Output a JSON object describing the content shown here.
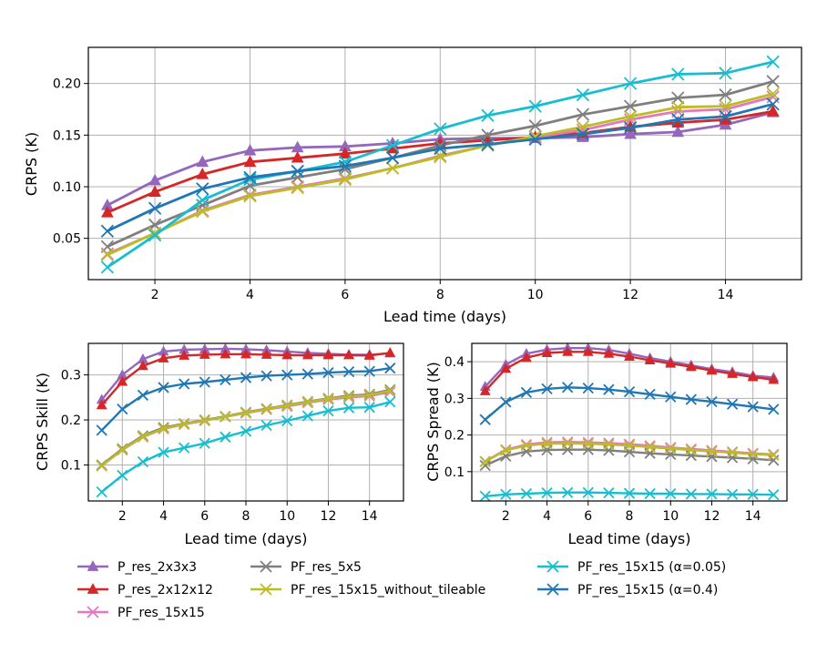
{
  "colors": {
    "P_res_2x3x3": "#9467bd",
    "P_res_2x12x12": "#d62728",
    "PF_res_15x15": "#e377c2",
    "PF_res_5x5": "#7f7f7f",
    "PF_res_15x15_without_tileable": "#bcbd22",
    "PF_res_15x15_a005": "#17becf",
    "PF_res_15x15_a04": "#1f77b4"
  },
  "chart_data": [
    {
      "type": "line",
      "title": "",
      "xlabel": "Lead time (days)",
      "ylabel": "CRPS (K)",
      "xlim": [
        0.6,
        15.6
      ],
      "ylim": [
        0.01,
        0.235
      ],
      "xticks": [
        2,
        4,
        6,
        8,
        10,
        12,
        14
      ],
      "yticks": [
        0.05,
        0.1,
        0.15,
        0.2
      ],
      "ytick_labels": [
        "0.05",
        "0.10",
        "0.15",
        "0.20"
      ],
      "grid": true,
      "x": [
        1,
        2,
        3,
        4,
        5,
        6,
        7,
        8,
        9,
        10,
        11,
        12,
        13,
        14,
        15
      ],
      "series": [
        {
          "name": "P_res_2x3x3",
          "marker": "triangle",
          "color_key": "P_res_2x3x3",
          "values": [
            0.082,
            0.106,
            0.124,
            0.135,
            0.138,
            0.139,
            0.142,
            0.146,
            0.147,
            0.147,
            0.148,
            0.151,
            0.153,
            0.16,
            0.172
          ]
        },
        {
          "name": "P_res_2x12x12",
          "marker": "triangle",
          "color_key": "P_res_2x12x12",
          "values": [
            0.075,
            0.095,
            0.112,
            0.124,
            0.128,
            0.132,
            0.137,
            0.142,
            0.145,
            0.148,
            0.152,
            0.158,
            0.162,
            0.165,
            0.173
          ]
        },
        {
          "name": "PF_res_15x15",
          "marker": "x",
          "color_key": "PF_res_15x15",
          "values": [
            0.035,
            0.055,
            0.077,
            0.092,
            0.1,
            0.108,
            0.118,
            0.13,
            0.14,
            0.148,
            0.155,
            0.165,
            0.173,
            0.175,
            0.187
          ]
        },
        {
          "name": "PF_res_5x5",
          "marker": "x",
          "color_key": "PF_res_5x5",
          "values": [
            0.042,
            0.063,
            0.082,
            0.101,
            0.109,
            0.117,
            0.128,
            0.14,
            0.15,
            0.159,
            0.17,
            0.178,
            0.186,
            0.189,
            0.202
          ]
        },
        {
          "name": "PF_res_15x15_without_tileable",
          "marker": "x",
          "color_key": "PF_res_15x15_without_tileable",
          "values": [
            0.034,
            0.055,
            0.076,
            0.091,
            0.099,
            0.107,
            0.118,
            0.129,
            0.14,
            0.149,
            0.158,
            0.168,
            0.177,
            0.178,
            0.19
          ]
        },
        {
          "name": "PF_res_15x15 (α=0.05)",
          "marker": "x",
          "color_key": "PF_res_15x15_a005",
          "values": [
            0.022,
            0.053,
            0.087,
            0.107,
            0.115,
            0.124,
            0.14,
            0.156,
            0.169,
            0.178,
            0.189,
            0.2,
            0.209,
            0.21,
            0.221
          ]
        },
        {
          "name": "PF_res_15x15 (α=0.4)",
          "marker": "x",
          "color_key": "PF_res_15x15_a04",
          "values": [
            0.057,
            0.079,
            0.098,
            0.109,
            0.115,
            0.12,
            0.128,
            0.137,
            0.141,
            0.146,
            0.151,
            0.157,
            0.165,
            0.168,
            0.18
          ]
        }
      ]
    },
    {
      "type": "line",
      "title": "",
      "xlabel": "Lead time (days)",
      "ylabel": "CRPS Skill (K)",
      "xlim": [
        0.35,
        15.65
      ],
      "ylim": [
        0.02,
        0.37
      ],
      "xticks": [
        2,
        4,
        6,
        8,
        10,
        12,
        14
      ],
      "yticks": [
        0.1,
        0.2,
        0.3
      ],
      "ytick_labels": [
        "0.1",
        "0.2",
        "0.3"
      ],
      "grid": true,
      "x": [
        1,
        2,
        3,
        4,
        5,
        6,
        7,
        8,
        9,
        10,
        11,
        12,
        13,
        14,
        15
      ],
      "series": [
        {
          "name": "P_res_2x3x3",
          "marker": "triangle",
          "color_key": "P_res_2x3x3",
          "values": [
            0.245,
            0.3,
            0.335,
            0.352,
            0.356,
            0.357,
            0.358,
            0.357,
            0.355,
            0.352,
            0.349,
            0.347,
            0.345,
            0.345,
            0.348
          ]
        },
        {
          "name": "P_res_2x12x12",
          "marker": "triangle",
          "color_key": "P_res_2x12x12",
          "values": [
            0.233,
            0.285,
            0.32,
            0.337,
            0.343,
            0.345,
            0.346,
            0.346,
            0.345,
            0.344,
            0.344,
            0.344,
            0.344,
            0.343,
            0.349
          ]
        },
        {
          "name": "PF_res_15x15",
          "marker": "x",
          "color_key": "PF_res_15x15",
          "values": [
            0.098,
            0.133,
            0.162,
            0.18,
            0.19,
            0.198,
            0.207,
            0.215,
            0.223,
            0.23,
            0.238,
            0.245,
            0.25,
            0.253,
            0.262
          ]
        },
        {
          "name": "PF_res_5x5",
          "marker": "x",
          "color_key": "PF_res_5x5",
          "values": [
            0.1,
            0.136,
            0.165,
            0.183,
            0.192,
            0.2,
            0.208,
            0.217,
            0.225,
            0.233,
            0.241,
            0.248,
            0.254,
            0.257,
            0.267
          ]
        },
        {
          "name": "PF_res_15x15_without_tileable",
          "marker": "x",
          "color_key": "PF_res_15x15_without_tileable",
          "values": [
            0.098,
            0.134,
            0.163,
            0.181,
            0.191,
            0.199,
            0.207,
            0.216,
            0.224,
            0.232,
            0.24,
            0.247,
            0.252,
            0.255,
            0.265
          ]
        },
        {
          "name": "PF_res_15x15 (α=0.05)",
          "marker": "x",
          "color_key": "PF_res_15x15_a005",
          "values": [
            0.04,
            0.077,
            0.107,
            0.128,
            0.138,
            0.148,
            0.162,
            0.175,
            0.188,
            0.198,
            0.209,
            0.22,
            0.227,
            0.228,
            0.24
          ]
        },
        {
          "name": "PF_res_15x15 (α=0.4)",
          "marker": "x",
          "color_key": "PF_res_15x15_a04",
          "values": [
            0.177,
            0.224,
            0.255,
            0.272,
            0.28,
            0.284,
            0.289,
            0.294,
            0.298,
            0.3,
            0.302,
            0.305,
            0.307,
            0.308,
            0.315
          ]
        }
      ]
    },
    {
      "type": "line",
      "title": "",
      "xlabel": "Lead time (days)",
      "ylabel": "CRPS Spread (K)",
      "xlim": [
        0.35,
        15.65
      ],
      "ylim": [
        0.02,
        0.45
      ],
      "xticks": [
        2,
        4,
        6,
        8,
        10,
        12,
        14
      ],
      "yticks": [
        0.1,
        0.2,
        0.3,
        0.4
      ],
      "ytick_labels": [
        "0.1",
        "0.2",
        "0.3",
        "0.4"
      ],
      "grid": true,
      "x": [
        1,
        2,
        3,
        4,
        5,
        6,
        7,
        8,
        9,
        10,
        11,
        12,
        13,
        14,
        15
      ],
      "series": [
        {
          "name": "P_res_2x3x3",
          "marker": "triangle",
          "color_key": "P_res_2x3x3",
          "values": [
            0.332,
            0.392,
            0.422,
            0.433,
            0.437,
            0.437,
            0.432,
            0.422,
            0.41,
            0.4,
            0.39,
            0.38,
            0.372,
            0.362,
            0.357
          ]
        },
        {
          "name": "P_res_2x12x12",
          "marker": "triangle",
          "color_key": "P_res_2x12x12",
          "values": [
            0.32,
            0.381,
            0.411,
            0.424,
            0.427,
            0.427,
            0.422,
            0.414,
            0.404,
            0.395,
            0.386,
            0.376,
            0.367,
            0.358,
            0.351
          ]
        },
        {
          "name": "PF_res_15x15",
          "marker": "x",
          "color_key": "PF_res_15x15",
          "values": [
            0.128,
            0.16,
            0.174,
            0.18,
            0.181,
            0.18,
            0.178,
            0.175,
            0.171,
            0.166,
            0.162,
            0.158,
            0.154,
            0.15,
            0.147
          ]
        },
        {
          "name": "PF_res_5x5",
          "marker": "x",
          "color_key": "PF_res_5x5",
          "values": [
            0.117,
            0.142,
            0.155,
            0.159,
            0.16,
            0.16,
            0.158,
            0.154,
            0.15,
            0.147,
            0.144,
            0.141,
            0.138,
            0.135,
            0.131
          ]
        },
        {
          "name": "PF_res_15x15_without_tileable",
          "marker": "x",
          "color_key": "PF_res_15x15_without_tileable",
          "values": [
            0.127,
            0.158,
            0.171,
            0.176,
            0.177,
            0.176,
            0.174,
            0.171,
            0.167,
            0.163,
            0.159,
            0.155,
            0.152,
            0.148,
            0.145
          ]
        },
        {
          "name": "PF_res_15x15 (α=0.05)",
          "marker": "x",
          "color_key": "PF_res_15x15_a005",
          "values": [
            0.033,
            0.038,
            0.04,
            0.042,
            0.043,
            0.043,
            0.042,
            0.041,
            0.04,
            0.04,
            0.039,
            0.039,
            0.038,
            0.038,
            0.037
          ]
        },
        {
          "name": "PF_res_15x15 (α=0.4)",
          "marker": "x",
          "color_key": "PF_res_15x15_a04",
          "values": [
            0.242,
            0.29,
            0.316,
            0.326,
            0.33,
            0.328,
            0.324,
            0.318,
            0.311,
            0.304,
            0.297,
            0.291,
            0.284,
            0.277,
            0.27
          ]
        }
      ]
    }
  ],
  "legend": {
    "placement": "bottom",
    "entries": [
      {
        "label": "P_res_2x3x3",
        "marker": "triangle",
        "color_key": "P_res_2x3x3"
      },
      {
        "label": "P_res_2x12x12",
        "marker": "triangle",
        "color_key": "P_res_2x12x12"
      },
      {
        "label": "PF_res_15x15",
        "marker": "x",
        "color_key": "PF_res_15x15"
      },
      {
        "label": "PF_res_5x5",
        "marker": "x",
        "color_key": "PF_res_5x5"
      },
      {
        "label": "PF_res_15x15_without_tileable",
        "marker": "x",
        "color_key": "PF_res_15x15_without_tileable"
      },
      {
        "label": "PF_res_15x15 (α=0.05)",
        "marker": "x",
        "color_key": "PF_res_15x15_a005"
      },
      {
        "label": "PF_res_15x15 (α=0.4)",
        "marker": "x",
        "color_key": "PF_res_15x15_a04"
      }
    ]
  }
}
